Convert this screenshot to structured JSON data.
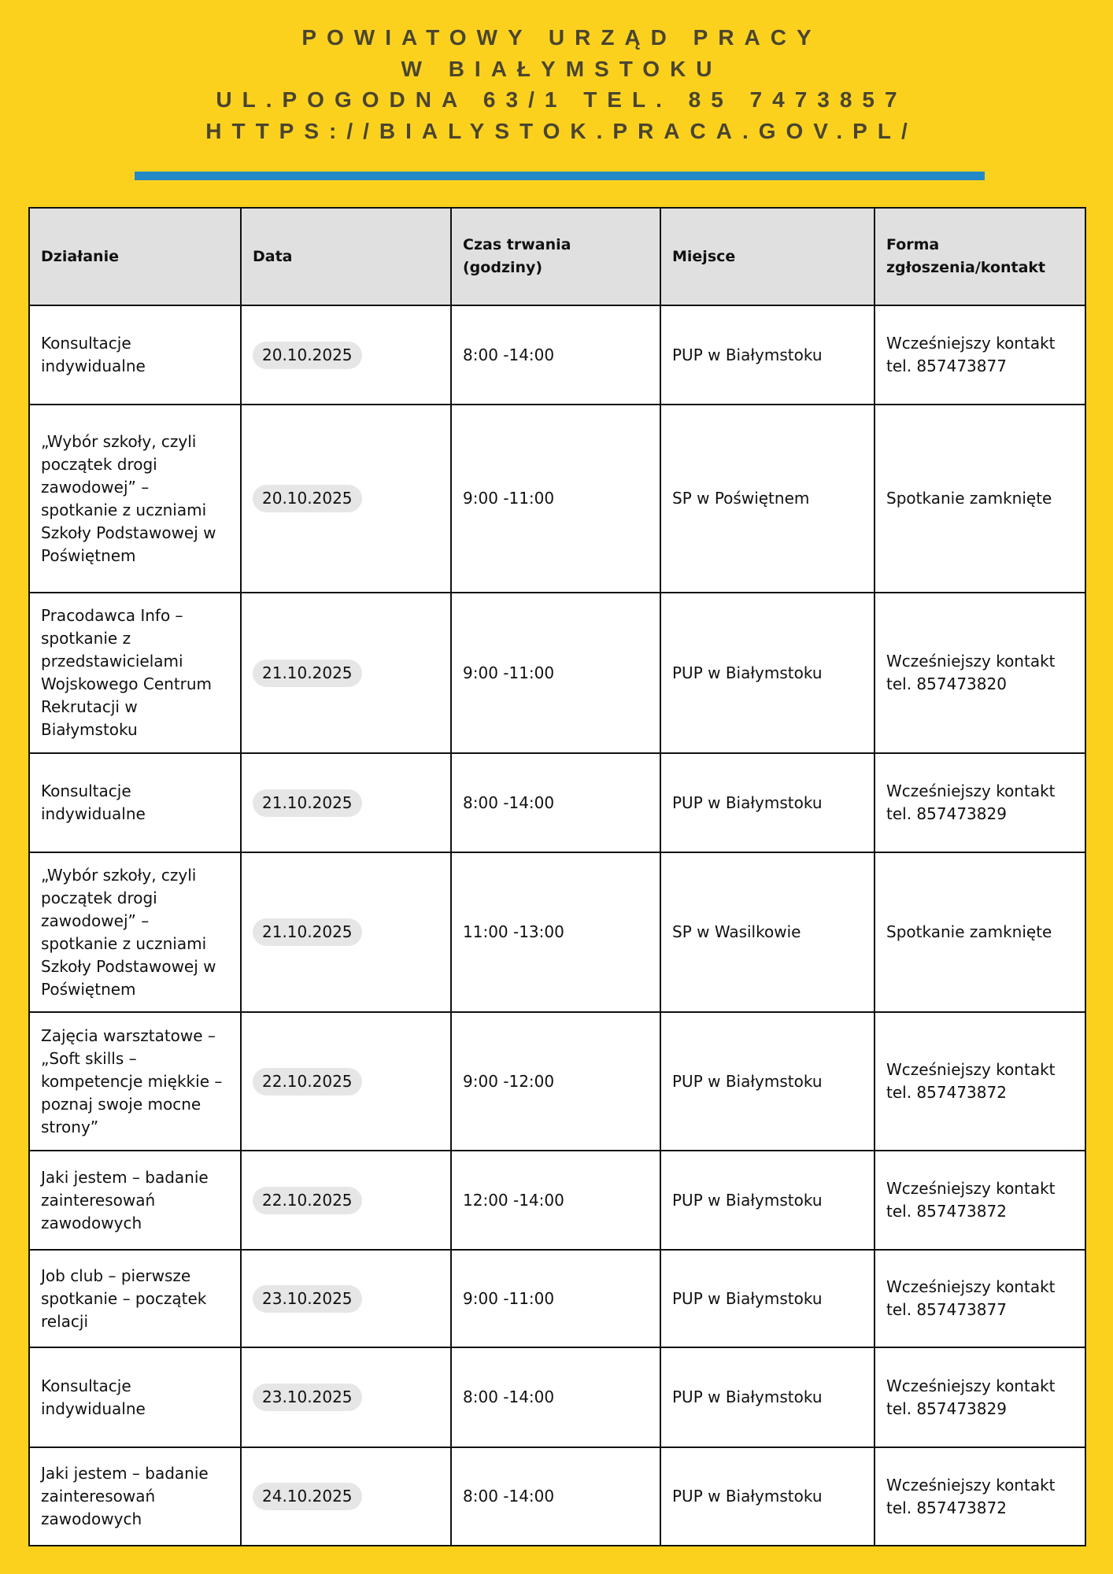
{
  "header": {
    "line1": "POWIATOWY URZĄD PRACY",
    "line2": "W BIAŁYMSTOKU",
    "line3": "UL.POGODNA 63/1 TEL. 85 7473857",
    "line4": "HTTPS://BIALYSTOK.PRACA.GOV.PL/"
  },
  "colors": {
    "background": "#fcd11e",
    "accent_bar": "#2389c6",
    "header_cell": "#e0e0e0"
  },
  "table": {
    "columns": [
      "Działanie",
      "Data",
      "Czas trwania (godziny)",
      "Miejsce",
      "Forma zgłoszenia/kontakt"
    ],
    "rows": [
      {
        "action": "Konsultacje indywidualne",
        "date": "20.10.2025",
        "time": "8:00 -14:00",
        "place": "PUP w Białymstoku",
        "contact": "Wcześniejszy kontakt tel. 857473877"
      },
      {
        "action": "„Wybór szkoły, czyli początek drogi zawodowej” – spotkanie z uczniami Szkoły Podstawowej w Poświętnem",
        "date": "20.10.2025",
        "time": "9:00 -11:00",
        "place": "SP w Poświętnem",
        "contact": "Spotkanie zamknięte"
      },
      {
        "action": "Pracodawca Info – spotkanie z przedstawicielami Wojskowego Centrum Rekrutacji w Białymstoku",
        "date": "21.10.2025",
        "time": "9:00 -11:00",
        "place": "PUP w Białymstoku",
        "contact": "Wcześniejszy kontakt tel. 857473820"
      },
      {
        "action": "Konsultacje indywidualne",
        "date": "21.10.2025",
        "time": "8:00 -14:00",
        "place": "PUP w Białymstoku",
        "contact": "Wcześniejszy kontakt tel. 857473829"
      },
      {
        "action": "„Wybór szkoły, czyli początek drogi zawodowej” – spotkanie z uczniami Szkoły Podstawowej w Poświętnem",
        "date": "21.10.2025",
        "time": "11:00 -13:00",
        "place": "SP w Wasilkowie",
        "contact": "Spotkanie zamknięte"
      },
      {
        "action": "Zajęcia warsztatowe – „Soft skills – kompetencje miękkie – poznaj swoje mocne strony”",
        "date": "22.10.2025",
        "time": "9:00 -12:00",
        "place": "PUP w Białymstoku",
        "contact": "Wcześniejszy kontakt tel. 857473872"
      },
      {
        "action": "Jaki jestem – badanie zainteresowań zawodowych",
        "date": "22.10.2025",
        "time": "12:00 -14:00",
        "place": "PUP w Białymstoku",
        "contact": "Wcześniejszy kontakt tel. 857473872"
      },
      {
        "action": "Job club – pierwsze spotkanie – początek relacji",
        "date": "23.10.2025",
        "time": "9:00 -11:00",
        "place": "PUP w Białymstoku",
        "contact": "Wcześniejszy kontakt tel. 857473877"
      },
      {
        "action": "Konsultacje indywidualne",
        "date": "23.10.2025",
        "time": "8:00 -14:00",
        "place": "PUP w Białymstoku",
        "contact": "Wcześniejszy kontakt tel. 857473829"
      },
      {
        "action": "Jaki jestem – badanie zainteresowań zawodowych",
        "date": "24.10.2025",
        "time": "8:00 -14:00",
        "place": "PUP w Białymstoku",
        "contact": "Wcześniejszy kontakt tel. 857473872"
      }
    ]
  }
}
